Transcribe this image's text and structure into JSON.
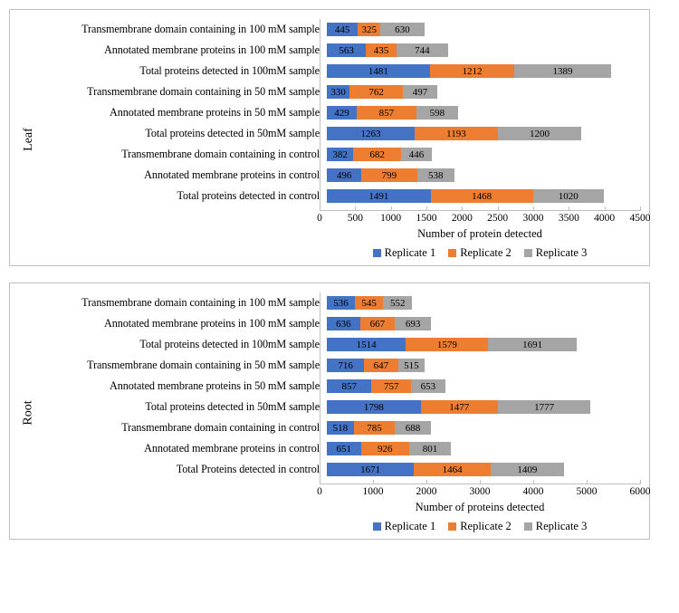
{
  "colors": {
    "rep1": "#4472c4",
    "rep2": "#ed7d31",
    "rep3": "#a5a5a5",
    "border": "#bfbfbf",
    "bg": "#ffffff"
  },
  "legend": [
    {
      "label": "Replicate 1",
      "colorKey": "rep1"
    },
    {
      "label": "Replicate 2",
      "colorKey": "rep2"
    },
    {
      "label": "Replicate 3",
      "colorKey": "rep3"
    }
  ],
  "panels": [
    {
      "id": "leaf",
      "vlabel": "Leaf",
      "xlabel": "Number of protein detected",
      "xmax": 4500,
      "xstep": 500,
      "rows": [
        {
          "label": "Transmembrane domain containing in 100 mM sample",
          "v": [
            445,
            325,
            630
          ]
        },
        {
          "label": "Annotated membrane proteins in 100 mM sample",
          "v": [
            563,
            435,
            744
          ]
        },
        {
          "label": "Total proteins detected  in 100mM sample",
          "v": [
            1481,
            1212,
            1389
          ]
        },
        {
          "label": "Transmembrane domain containing in 50 mM sample",
          "v": [
            330,
            762,
            497
          ]
        },
        {
          "label": "Annotated membrane proteins in 50 mM sample",
          "v": [
            429,
            857,
            598
          ]
        },
        {
          "label": "Total proteins detected in 50mM sample",
          "v": [
            1263,
            1193,
            1200
          ]
        },
        {
          "label": "Transmembrane domain containing in control",
          "v": [
            382,
            682,
            446
          ]
        },
        {
          "label": "Annotated membrane proteins in control",
          "v": [
            496,
            799,
            538
          ]
        },
        {
          "label": "Total proteins detected in control",
          "v": [
            1491,
            1468,
            1020
          ]
        }
      ]
    },
    {
      "id": "root",
      "vlabel": "Root",
      "xlabel": "Number of proteins detected",
      "xmax": 6000,
      "xstep": 1000,
      "rows": [
        {
          "label": "Transmembrane domain containing in 100 mM sample",
          "v": [
            536,
            545,
            552
          ]
        },
        {
          "label": "Annotated membrane proteins in 100 mM sample",
          "v": [
            636,
            667,
            693
          ]
        },
        {
          "label": "Total proteins detected  in 100mM sample",
          "v": [
            1514,
            1579,
            1691
          ]
        },
        {
          "label": "Transmembrane domain containing in 50 mM sample",
          "v": [
            716,
            647,
            515
          ]
        },
        {
          "label": "Annotated membrane proteins in 50 mM sample",
          "v": [
            857,
            757,
            653
          ]
        },
        {
          "label": "Total proteins detected in 50mM sample",
          "v": [
            1798,
            1477,
            1777
          ]
        },
        {
          "label": "Transmembrane domain containing in control",
          "v": [
            518,
            785,
            688
          ]
        },
        {
          "label": "Annotated membrane proteins in control",
          "v": [
            651,
            926,
            801
          ]
        },
        {
          "label": "Total Proteins detected in control",
          "v": [
            1671,
            1464,
            1409
          ]
        }
      ]
    }
  ]
}
